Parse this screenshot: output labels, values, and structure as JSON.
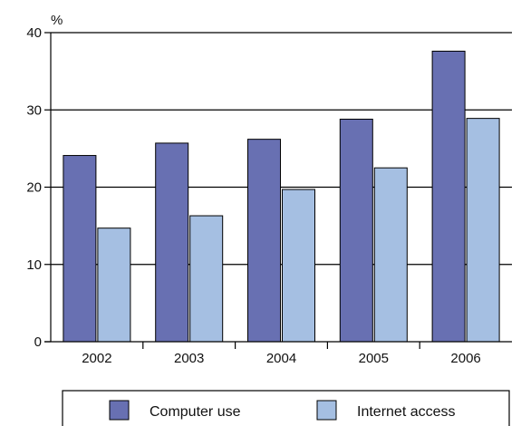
{
  "chart_data": {
    "type": "bar",
    "title": "",
    "unit_label": "%",
    "xlabel": "",
    "ylabel": "",
    "categories": [
      "2002",
      "2003",
      "2004",
      "2005",
      "2006"
    ],
    "ylim": [
      0,
      40
    ],
    "yticks": [
      0,
      10,
      20,
      30,
      40
    ],
    "grid": true,
    "legend_position": "bottom",
    "series": [
      {
        "name": "Computer use",
        "color": "#6870b2",
        "values": [
          24.1,
          25.7,
          26.2,
          28.8,
          37.6
        ]
      },
      {
        "name": "Internet access",
        "color": "#a5bfe2",
        "values": [
          14.7,
          16.3,
          19.7,
          22.5,
          28.9
        ]
      }
    ]
  }
}
